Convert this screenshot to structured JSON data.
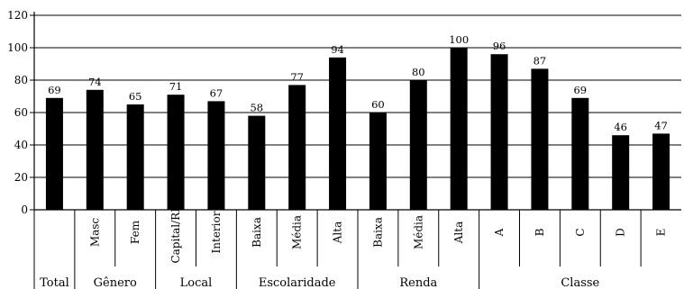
{
  "chart_data": {
    "type": "bar",
    "title": "",
    "xlabel": "",
    "ylabel": "",
    "ylim": [
      0,
      120
    ],
    "yticks": [
      0,
      20,
      40,
      60,
      80,
      100,
      120
    ],
    "grid": true,
    "bar_color": "#000000",
    "grid_color": "#000000",
    "categories": [
      "",
      "Masc",
      "Fem",
      "Capital/RM",
      "Interior",
      "Baixa",
      "Média",
      "Alta",
      "Baixa",
      "Média",
      "Alta",
      "A",
      "B",
      "C",
      "D",
      "E"
    ],
    "values": [
      69,
      74,
      65,
      71,
      67,
      58,
      77,
      94,
      60,
      80,
      100,
      96,
      87,
      69,
      46,
      47
    ],
    "groups": [
      {
        "label": "Total",
        "start": 0,
        "end": 0
      },
      {
        "label": "Gênero",
        "start": 1,
        "end": 2
      },
      {
        "label": "Local",
        "start": 3,
        "end": 4
      },
      {
        "label": "Escolaridade",
        "start": 5,
        "end": 7
      },
      {
        "label": "Renda",
        "start": 8,
        "end": 10
      },
      {
        "label": "Classe",
        "start": 11,
        "end": 15
      }
    ]
  }
}
